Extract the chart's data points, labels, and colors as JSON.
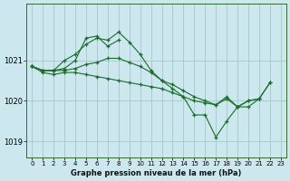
{
  "bg_color": "#cce8ee",
  "grid_color": "#aacccc",
  "line_color": "#1a6b2a",
  "xlabel": "Graphe pression niveau de la mer (hPa)",
  "ylim": [
    1018.6,
    1022.4
  ],
  "xlim": [
    -0.5,
    23.5
  ],
  "yticks": [
    1019,
    1020,
    1021
  ],
  "xticks": [
    0,
    1,
    2,
    3,
    4,
    5,
    6,
    7,
    8,
    9,
    10,
    11,
    12,
    13,
    14,
    15,
    16,
    17,
    18,
    19,
    20,
    21,
    22,
    23
  ],
  "series": [
    [
      1020.85,
      1020.75,
      1020.75,
      1020.8,
      1021.0,
      1021.55,
      1021.6,
      1021.35,
      1021.5,
      null,
      null,
      null,
      null,
      null,
      null,
      null,
      null,
      null,
      null,
      null,
      null,
      null,
      null,
      null
    ],
    [
      1020.85,
      1020.75,
      1020.75,
      1021.0,
      1021.15,
      1021.4,
      1021.55,
      1021.5,
      1021.7,
      1021.45,
      1021.15,
      1020.75,
      1020.5,
      1020.3,
      1020.1,
      1019.65,
      1019.65,
      1019.1,
      1019.5,
      1019.85,
      1019.85,
      1020.05,
      null,
      null
    ],
    [
      1020.85,
      1020.75,
      1020.75,
      1020.75,
      1020.8,
      1020.9,
      1020.95,
      1021.05,
      1021.05,
      1020.95,
      1020.85,
      1020.7,
      1020.5,
      1020.4,
      1020.25,
      1020.1,
      1020.0,
      1019.9,
      1020.05,
      1019.85,
      1020.0,
      1020.05,
      1020.45,
      null
    ],
    [
      1020.85,
      1020.7,
      1020.65,
      1020.7,
      1020.7,
      1020.65,
      1020.6,
      1020.55,
      1020.5,
      1020.45,
      1020.4,
      1020.35,
      1020.3,
      1020.2,
      1020.1,
      1020.0,
      1019.95,
      1019.9,
      1020.1,
      1019.85,
      1020.0,
      1020.05,
      1020.45,
      null
    ]
  ]
}
